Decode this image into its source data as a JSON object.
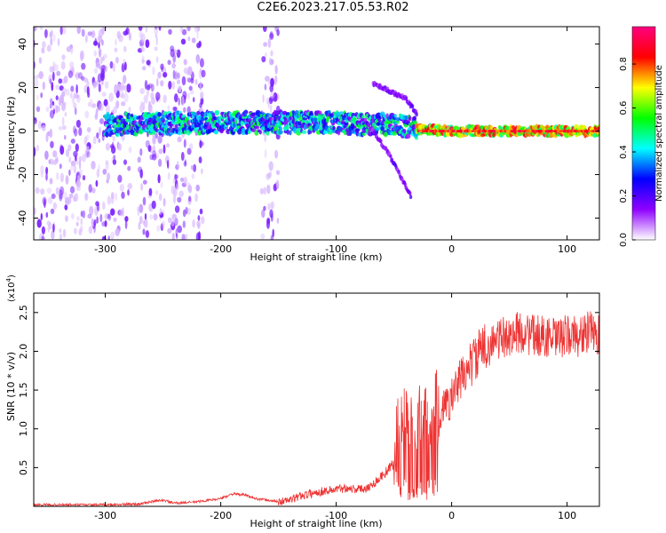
{
  "title": "C2E6.2023.217.05.53.R02",
  "chart_data": [
    {
      "type": "heatmap",
      "xlabel": "Height of straight line (km)",
      "ylabel": "Frequency (Hz)",
      "xlim": [
        -362,
        128
      ],
      "ylim": [
        -50,
        48
      ],
      "xticks": [
        -300,
        -200,
        -100,
        0,
        100
      ],
      "xtick_labels": [
        "-300",
        "-200",
        "-100",
        "0",
        "100"
      ],
      "yticks": [
        -40,
        -20,
        0,
        20,
        40
      ],
      "ytick_labels": [
        "-40",
        "-20",
        "0",
        "20",
        "40"
      ],
      "colorbar": {
        "label": "Normalized spectral amplitude",
        "range": [
          0,
          0.97
        ],
        "ticks": [
          0.0,
          0.2,
          0.4,
          0.6,
          0.8
        ],
        "tick_labels": [
          "0.0",
          "0.2",
          "0.4",
          "0.6",
          "0.8"
        ],
        "colormap": [
          "#ffffff",
          "#8f00ff",
          "#0000ff",
          "#00ffff",
          "#00ff00",
          "#ffff00",
          "#ff0000",
          "#ff0080"
        ]
      },
      "features": {
        "noise_bands_x": [
          [
            -362,
            -278
          ],
          [
            -272,
            -255
          ],
          [
            -255,
            -215
          ],
          [
            -165,
            -150
          ]
        ],
        "main_band": [
          {
            "x": -300,
            "y": 3
          },
          {
            "x": -200,
            "y": 4
          },
          {
            "x": -100,
            "y": 4
          },
          {
            "x": -75,
            "y": 3
          },
          {
            "x": -50,
            "y": 3
          },
          {
            "x": -30,
            "y": 1
          },
          {
            "x": 0,
            "y": 0
          },
          {
            "x": 128,
            "y": 0
          }
        ],
        "descending_branch": [
          {
            "x": -75,
            "y": 5
          },
          {
            "x": -55,
            "y": -10
          },
          {
            "x": -35,
            "y": -30
          }
        ],
        "upper_branch": [
          {
            "x": -68,
            "y": 22
          },
          {
            "x": -40,
            "y": 15
          },
          {
            "x": -30,
            "y": 8
          }
        ],
        "grid": false
      }
    },
    {
      "type": "line",
      "xlabel": "Height of straight line (km)",
      "ylabel": "SNR (10 * v/v)",
      "yscale_label": "(x10",
      "yscale_exp": "4",
      "yscale_close": ")",
      "xlim": [
        -362,
        128
      ],
      "ylim": [
        0,
        2.75
      ],
      "xticks": [
        -300,
        -200,
        -100,
        0,
        100
      ],
      "xtick_labels": [
        "-300",
        "-200",
        "-100",
        "0",
        "100"
      ],
      "yticks": [
        0.5,
        1.0,
        1.5,
        2.0,
        2.5
      ],
      "ytick_labels": [
        "0.5",
        "1.0",
        "1.5",
        "2.0",
        "2.5"
      ],
      "color": "#ee3333",
      "series": [
        {
          "x": [
            -362,
            -300,
            -270,
            -260,
            -250,
            -240,
            -220,
            -200,
            -190,
            -180,
            -170,
            -160,
            -150,
            -140,
            -130,
            -120,
            -110,
            -100,
            -90,
            -80,
            -70,
            -60,
            -50,
            -45,
            -40,
            -35,
            -30,
            -25,
            -20,
            -15,
            -10,
            -5,
            0,
            5,
            10,
            15,
            20,
            25,
            30,
            35,
            40,
            50,
            60,
            70,
            80,
            90,
            100,
            110,
            120,
            128
          ],
          "y": [
            0.02,
            0.02,
            0.03,
            0.06,
            0.08,
            0.04,
            0.06,
            0.1,
            0.16,
            0.15,
            0.1,
            0.08,
            0.06,
            0.08,
            0.14,
            0.17,
            0.2,
            0.22,
            0.24,
            0.22,
            0.26,
            0.4,
            0.55,
            0.8,
            0.75,
            0.8,
            0.7,
            0.9,
            0.7,
            1.05,
            1.2,
            1.3,
            1.4,
            1.55,
            1.7,
            1.8,
            1.9,
            2.0,
            2.05,
            2.1,
            2.15,
            2.2,
            2.25,
            2.2,
            2.2,
            2.15,
            2.2,
            2.2,
            2.25,
            2.2
          ]
        }
      ]
    }
  ]
}
